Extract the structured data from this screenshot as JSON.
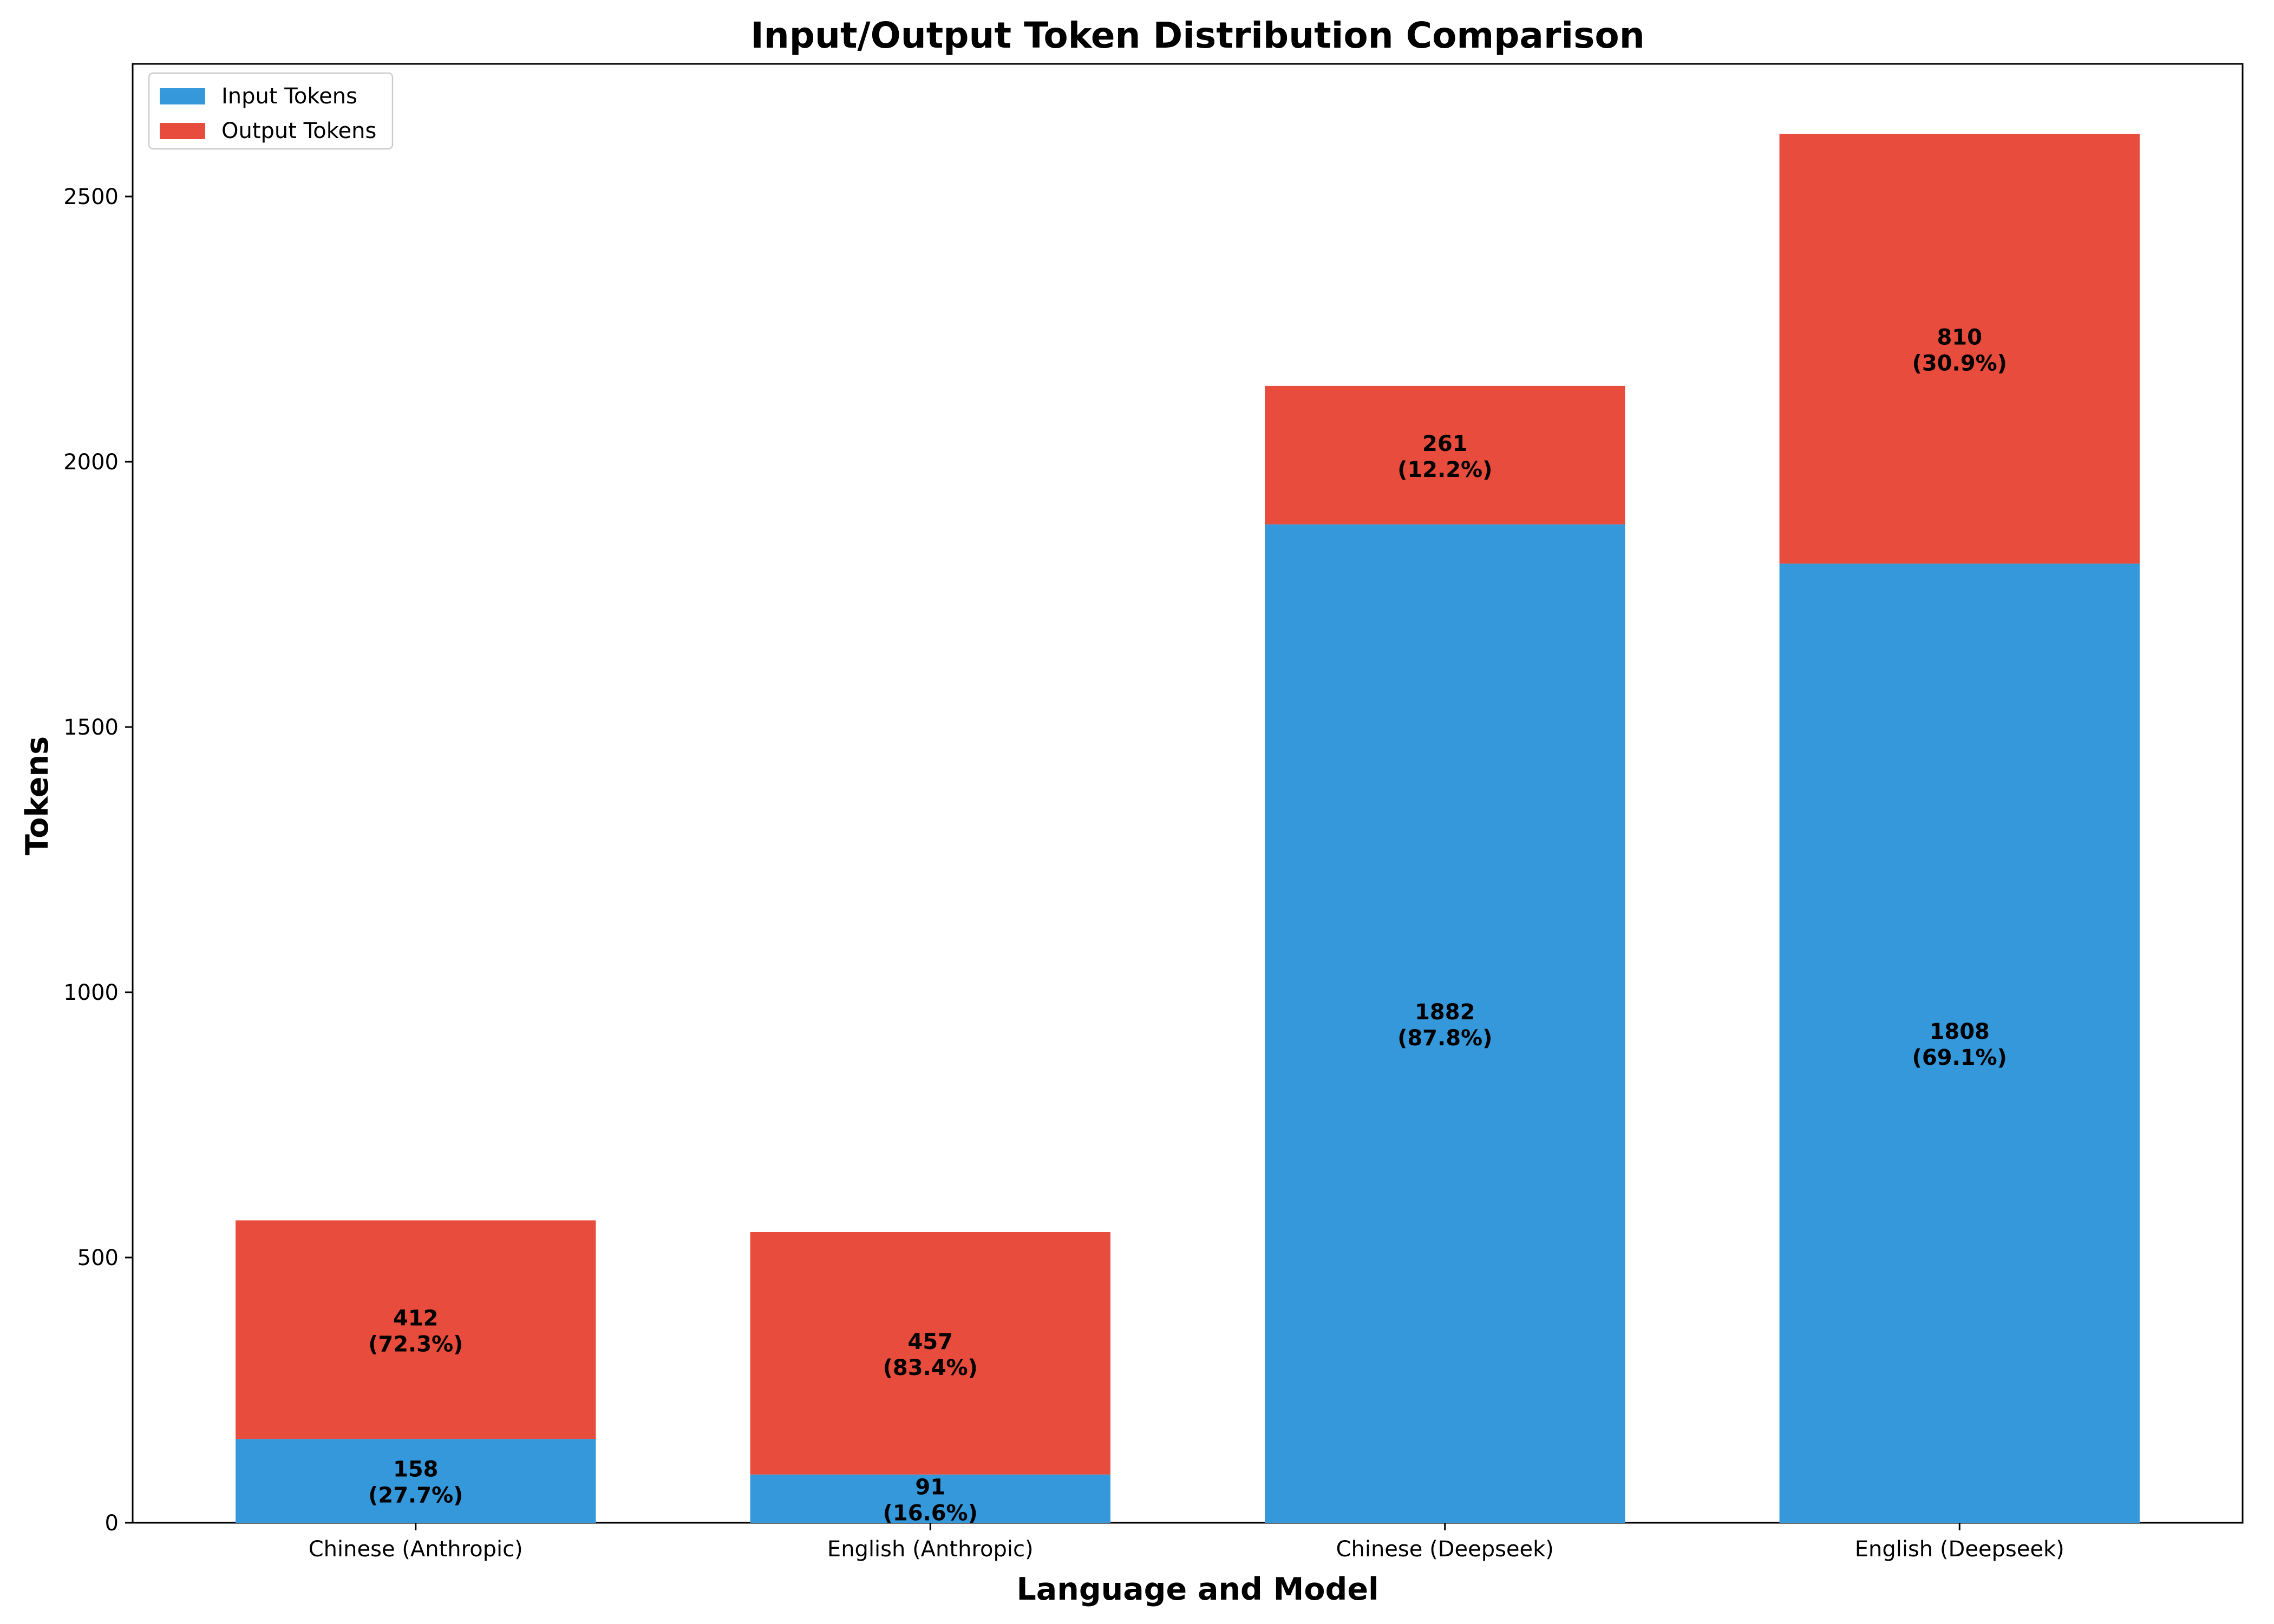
{
  "chart_data": {
    "type": "bar",
    "stacked": true,
    "title": "Input/Output Token Distribution Comparison",
    "xlabel": "Language and Model",
    "ylabel": "Tokens",
    "categories": [
      "Chinese (Anthropic)",
      "English (Anthropic)",
      "Chinese (Deepseek)",
      "English (Deepseek)"
    ],
    "series": [
      {
        "name": "Input Tokens",
        "color": "#3498db",
        "values": [
          158,
          91,
          1882,
          1808
        ],
        "percent_labels": [
          "(27.7%)",
          "(16.6%)",
          "(87.8%)",
          "(69.1%)"
        ]
      },
      {
        "name": "Output Tokens",
        "color": "#e74c3c",
        "values": [
          412,
          457,
          261,
          810
        ],
        "percent_labels": [
          "(72.3%)",
          "(83.4%)",
          "(12.2%)",
          "(30.9%)"
        ]
      }
    ],
    "ylim": [
      0,
      2750
    ],
    "yticks": [
      0,
      500,
      1000,
      1500,
      2000,
      2500
    ],
    "grid": false,
    "legend_position": "top-left"
  }
}
